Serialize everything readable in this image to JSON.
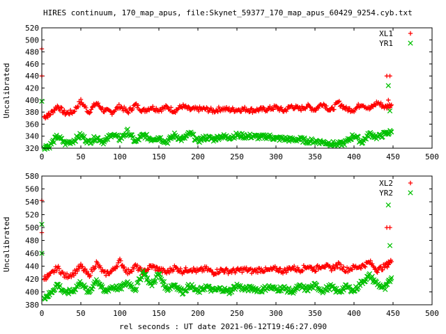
{
  "title": "HIRES continuum, 170_map_apus, file:Skynet_59377_170_map_apus_60429_9254.cyb.txt",
  "xlabel": "rel seconds : UT date 2021-06-12T19:46:27.090",
  "colors": {
    "red": "#ff0000",
    "green": "#00c000"
  },
  "chart_data": [
    {
      "type": "scatter",
      "ylabel": "Uncalibrated",
      "xlim": [
        0,
        500
      ],
      "ylim": [
        320,
        520
      ],
      "xticks": [
        0,
        50,
        100,
        150,
        200,
        250,
        300,
        350,
        400,
        450,
        500
      ],
      "yticks": [
        320,
        340,
        360,
        380,
        400,
        420,
        440,
        460,
        480,
        500,
        520
      ],
      "legend_position": "top-right",
      "series": [
        {
          "name": "XL1",
          "marker": "+",
          "color": "#ff0000",
          "outliers": [
            [
              0,
              485
            ],
            [
              0,
              440
            ],
            [
              442,
              440
            ],
            [
              446,
              440
            ],
            [
              444,
              400
            ]
          ],
          "x": [
            3,
            10,
            20,
            30,
            40,
            50,
            60,
            70,
            80,
            90,
            100,
            110,
            120,
            130,
            140,
            150,
            160,
            170,
            180,
            190,
            200,
            210,
            220,
            230,
            240,
            250,
            260,
            270,
            280,
            290,
            300,
            310,
            320,
            330,
            340,
            350,
            360,
            370,
            380,
            390,
            400,
            410,
            420,
            430,
            440,
            448
          ],
          "y": [
            372,
            376,
            390,
            378,
            380,
            398,
            380,
            395,
            382,
            380,
            390,
            380,
            392,
            382,
            388,
            384,
            388,
            382,
            390,
            384,
            385,
            385,
            382,
            386,
            384,
            384,
            385,
            383,
            384,
            385,
            388,
            382,
            390,
            385,
            390,
            384,
            395,
            382,
            396,
            385,
            384,
            394,
            385,
            396,
            388,
            392
          ]
        },
        {
          "name": "YR1",
          "marker": "x",
          "color": "#00c000",
          "outliers": [
            [
              0,
              398
            ],
            [
              444,
              424
            ],
            [
              446,
              382
            ]
          ],
          "x": [
            3,
            10,
            20,
            30,
            40,
            50,
            60,
            70,
            80,
            90,
            100,
            110,
            120,
            130,
            140,
            150,
            160,
            170,
            180,
            190,
            200,
            210,
            220,
            230,
            240,
            250,
            260,
            270,
            280,
            290,
            300,
            310,
            320,
            330,
            340,
            350,
            360,
            370,
            380,
            390,
            400,
            410,
            420,
            430,
            440,
            448
          ],
          "y": [
            322,
            324,
            340,
            328,
            332,
            342,
            330,
            338,
            330,
            344,
            335,
            348,
            330,
            342,
            335,
            338,
            330,
            342,
            334,
            345,
            332,
            338,
            335,
            340,
            338,
            342,
            340,
            340,
            338,
            340,
            336,
            336,
            334,
            335,
            332,
            332,
            330,
            328,
            326,
            330,
            342,
            330,
            344,
            338,
            344,
            347
          ]
        }
      ]
    },
    {
      "type": "scatter",
      "ylabel": "Uncalibrated",
      "xlim": [
        0,
        500
      ],
      "ylim": [
        380,
        580
      ],
      "xticks": [
        0,
        50,
        100,
        150,
        200,
        250,
        300,
        350,
        400,
        450,
        500
      ],
      "yticks": [
        380,
        400,
        420,
        440,
        460,
        480,
        500,
        520,
        540,
        560,
        580
      ],
      "legend_position": "top-right",
      "series": [
        {
          "name": "XL2",
          "marker": "+",
          "color": "#ff0000",
          "outliers": [
            [
              0,
              542
            ],
            [
              0,
              492
            ],
            [
              442,
              500
            ],
            [
              446,
              500
            ],
            [
              444,
              447
            ]
          ],
          "x": [
            3,
            10,
            20,
            30,
            40,
            50,
            60,
            70,
            80,
            90,
            100,
            110,
            120,
            130,
            140,
            150,
            160,
            170,
            180,
            190,
            200,
            210,
            220,
            230,
            240,
            250,
            260,
            270,
            280,
            290,
            300,
            310,
            320,
            330,
            340,
            350,
            360,
            370,
            380,
            390,
            400,
            410,
            420,
            430,
            440,
            448
          ],
          "y": [
            422,
            425,
            438,
            424,
            428,
            440,
            425,
            445,
            428,
            432,
            448,
            430,
            440,
            430,
            440,
            435,
            430,
            438,
            432,
            436,
            432,
            436,
            430,
            434,
            432,
            433,
            435,
            432,
            435,
            433,
            436,
            432,
            438,
            434,
            440,
            435,
            442,
            436,
            442,
            434,
            438,
            440,
            446,
            434,
            440,
            447
          ]
        },
        {
          "name": "YR2",
          "marker": "x",
          "color": "#00c000",
          "outliers": [
            [
              0,
              505
            ],
            [
              0,
              460
            ],
            [
              444,
              535
            ],
            [
              446,
              472
            ]
          ],
          "x": [
            3,
            10,
            20,
            30,
            40,
            50,
            60,
            70,
            80,
            90,
            100,
            110,
            120,
            130,
            140,
            150,
            160,
            170,
            180,
            190,
            200,
            210,
            220,
            230,
            240,
            250,
            260,
            270,
            280,
            290,
            300,
            310,
            320,
            330,
            340,
            350,
            360,
            370,
            380,
            390,
            400,
            410,
            420,
            430,
            440,
            448
          ],
          "y": [
            392,
            396,
            412,
            398,
            402,
            415,
            398,
            420,
            400,
            408,
            405,
            415,
            404,
            432,
            410,
            428,
            404,
            412,
            400,
            410,
            400,
            408,
            402,
            405,
            400,
            410,
            404,
            406,
            402,
            408,
            404,
            406,
            400,
            408,
            404,
            410,
            402,
            408,
            400,
            408,
            402,
            415,
            425,
            412,
            405,
            422
          ]
        }
      ]
    }
  ]
}
